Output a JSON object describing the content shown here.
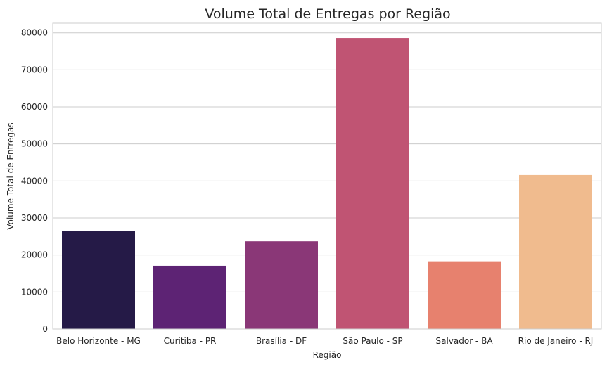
{
  "chart_data": {
    "type": "bar",
    "title": "Volume Total de Entregas por Região",
    "xlabel": "Região",
    "ylabel": "Volume Total de Entregas",
    "categories": [
      "Belo Horizonte - MG",
      "Curitiba - PR",
      "Brasília - DF",
      "São Paulo - SP",
      "Salvador - BA",
      "Rio de Janeiro - RJ"
    ],
    "values": [
      26400,
      17100,
      23700,
      78600,
      18300,
      41600
    ],
    "colors": [
      "#251a47",
      "#5d2374",
      "#8a3777",
      "#c05473",
      "#e7816e",
      "#f0bb8e"
    ],
    "ylim": [
      0,
      82600
    ],
    "yticks": [
      0,
      10000,
      20000,
      30000,
      40000,
      50000,
      60000,
      70000,
      80000
    ],
    "grid": "horizontal"
  }
}
